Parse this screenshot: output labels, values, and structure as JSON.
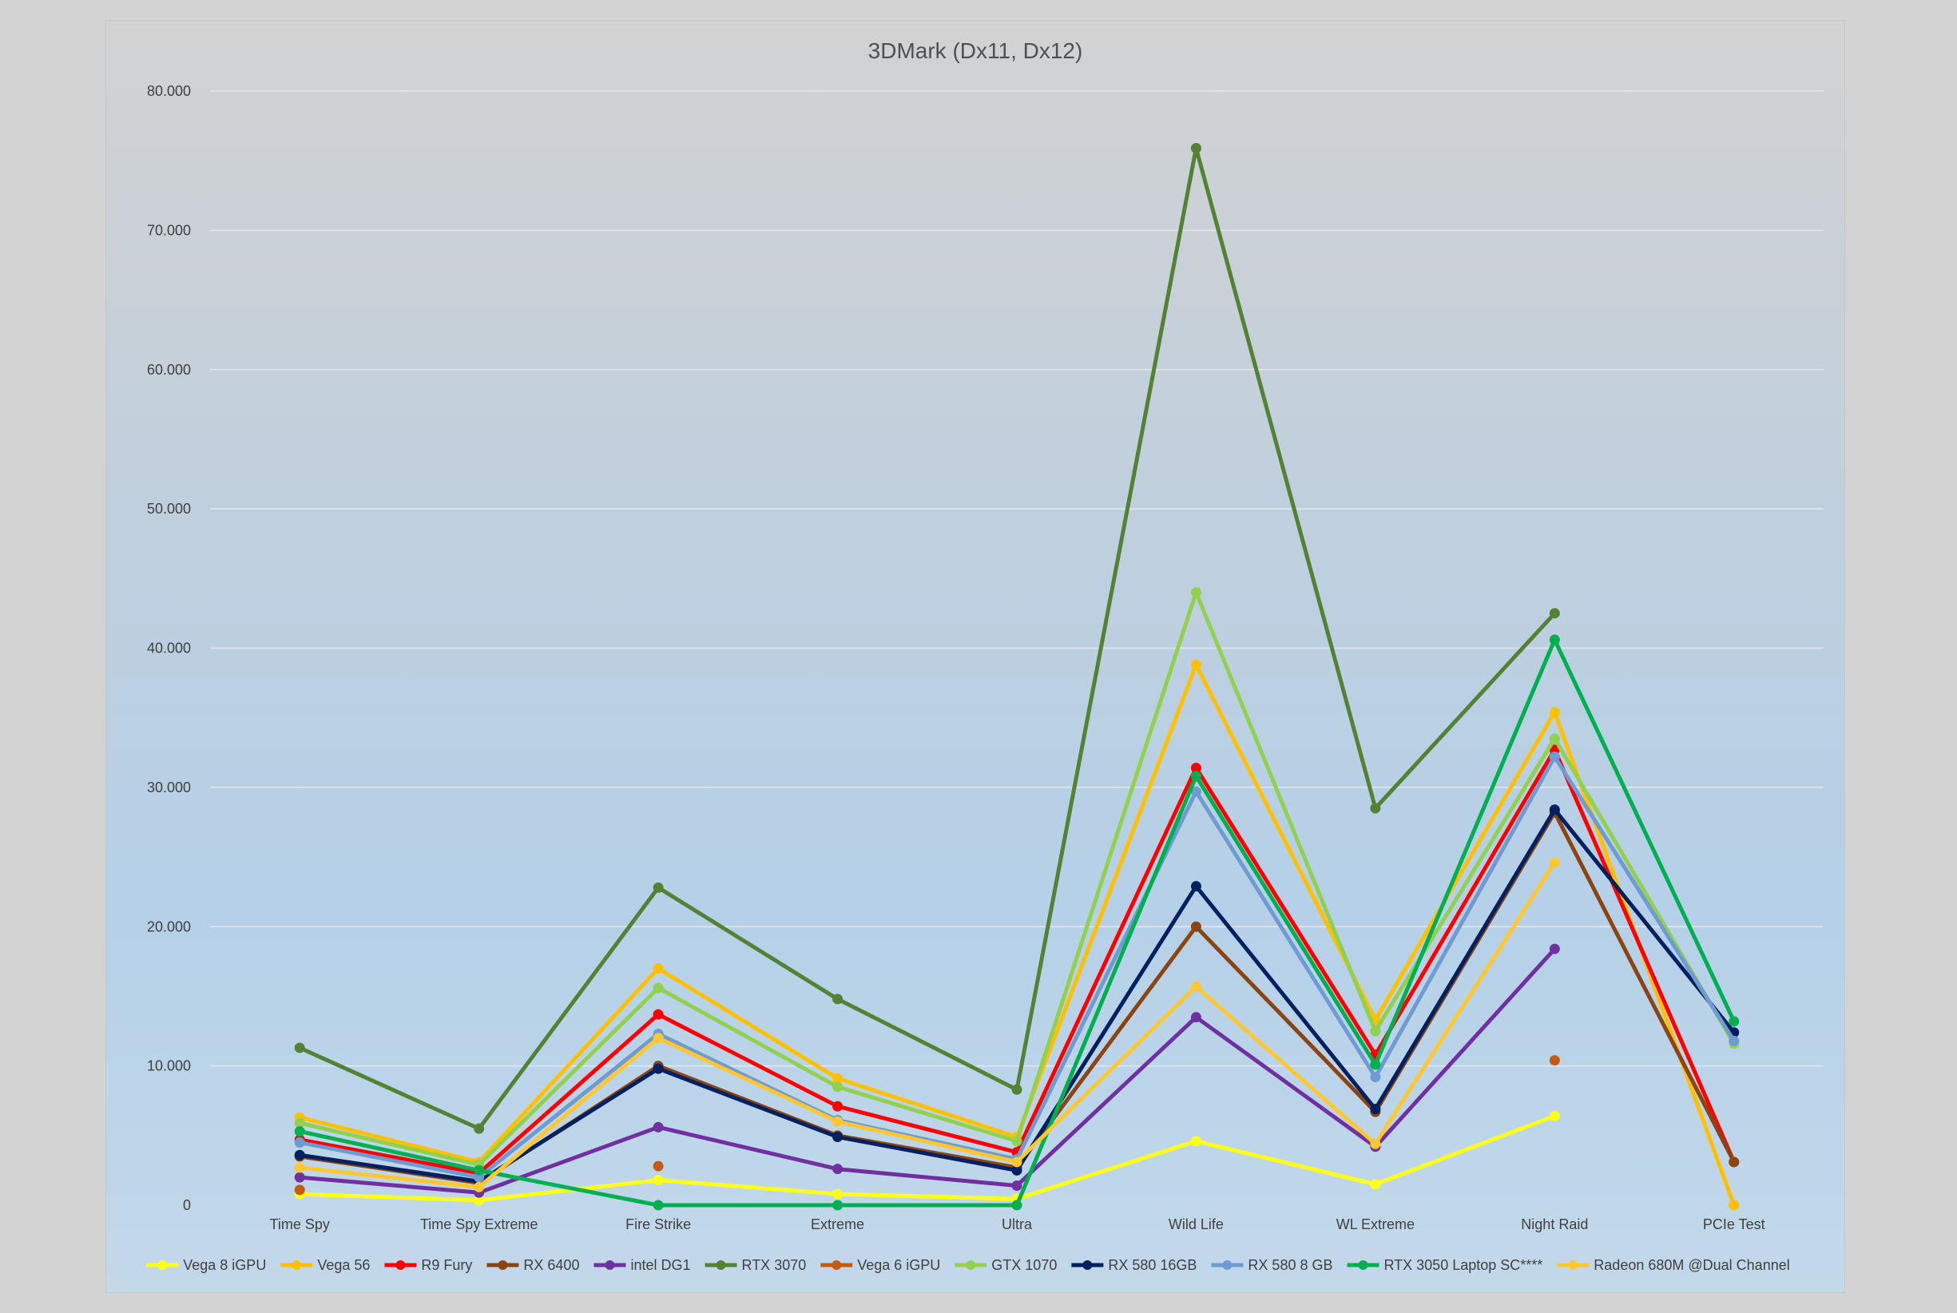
{
  "chart_data": {
    "type": "line",
    "title": "3DMark (Dx11, Dx12)",
    "xlabel": "",
    "ylabel": "",
    "ylim": [
      0,
      80000
    ],
    "y_ticks": [
      0,
      10000,
      20000,
      30000,
      40000,
      50000,
      60000,
      70000,
      80000
    ],
    "y_tick_labels": [
      "0",
      "10.000",
      "20.000",
      "30.000",
      "40.000",
      "50.000",
      "60.000",
      "70.000",
      "80.000"
    ],
    "grid": true,
    "legend_position": "bottom",
    "categories": [
      "Time Spy",
      "Time Spy Extreme",
      "Fire Strike",
      "Extreme",
      "Ultra",
      "Wild Life",
      "WL Extreme",
      "Night Raid",
      "PCIe Test"
    ],
    "series": [
      {
        "name": "Vega 8 iGPU",
        "color": "#ffff1a",
        "values": [
          800,
          350,
          1800,
          800,
          450,
          4600,
          1500,
          6400,
          null
        ]
      },
      {
        "name": "Vega 56",
        "color": "#ffc000",
        "values": [
          6300,
          3100,
          17000,
          9100,
          4900,
          38800,
          13300,
          35400,
          0
        ]
      },
      {
        "name": "R9 Fury",
        "color": "#ff0000",
        "values": [
          4700,
          2300,
          13700,
          7100,
          3800,
          31400,
          10800,
          32700,
          3100
        ]
      },
      {
        "name": "RX 6400",
        "color": "#8b4513",
        "values": [
          3500,
          1600,
          10000,
          5000,
          2700,
          20000,
          6700,
          28200,
          3100
        ]
      },
      {
        "name": "intel DG1",
        "color": "#7030a0",
        "values": [
          2000,
          900,
          5600,
          2600,
          1400,
          13500,
          4200,
          18400,
          null
        ]
      },
      {
        "name": "RTX 3070",
        "color": "#548235",
        "values": [
          11300,
          5500,
          22800,
          14800,
          8300,
          75900,
          28500,
          42500,
          null
        ]
      },
      {
        "name": "Vega 6 iGPU",
        "color": "#c55a11",
        "values": [
          1100,
          null,
          2800,
          null,
          null,
          null,
          null,
          10400,
          null
        ]
      },
      {
        "name": "GTX 1070",
        "color": "#92d050",
        "values": [
          5900,
          2900,
          15600,
          8500,
          4600,
          44000,
          12500,
          33500,
          11600
        ]
      },
      {
        "name": "RX 580 16GB",
        "color": "#002060",
        "values": [
          3600,
          1700,
          9800,
          4900,
          2500,
          22900,
          6900,
          28400,
          12400
        ]
      },
      {
        "name": "RX 580 8 GB",
        "color": "#6f9bd3",
        "values": [
          4500,
          2000,
          12300,
          6100,
          3300,
          29700,
          9200,
          32200,
          11800
        ]
      },
      {
        "name": "RTX 3050 Laptop SC****",
        "color": "#00b050",
        "values": [
          5300,
          2500,
          0,
          0,
          0,
          30800,
          10100,
          40600,
          13200
        ]
      },
      {
        "name": "Radeon 680M @Dual Channel",
        "color": "#ffc830",
        "values": [
          2700,
          1300,
          12000,
          6000,
          3100,
          15700,
          4400,
          24600,
          null
        ]
      }
    ]
  }
}
